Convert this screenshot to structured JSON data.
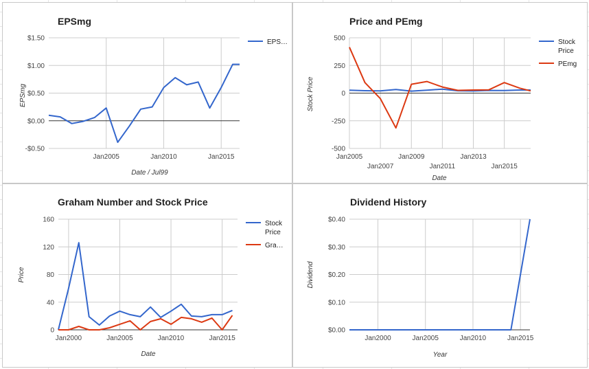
{
  "chart_data": [
    {
      "id": "eps",
      "type": "line",
      "title": "EPSmg",
      "xlabel": "Date / Jul99",
      "ylabel": "EPSmg",
      "x_ticks": [
        "Jan2005",
        "Jan2010",
        "Jan2015"
      ],
      "x_tick_years": [
        2005,
        2010,
        2015
      ],
      "xlim": [
        2000.0,
        2016.6
      ],
      "ylim": [
        -0.5,
        1.5
      ],
      "y_ticks": [
        -0.5,
        0,
        0.5,
        1.0,
        1.5
      ],
      "y_tick_labels": [
        "-$0.50",
        "$0.00",
        "$0.50",
        "$1.00",
        "$1.50"
      ],
      "legend_position": "right",
      "series": [
        {
          "name": "EPS…",
          "color": "#3366cc",
          "x": [
            2000.0,
            2001.0,
            2002.0,
            2003.0,
            2004.0,
            2005.0,
            2006.0,
            2007.0,
            2008.0,
            2009.0,
            2010.0,
            2011.0,
            2012.0,
            2013.0,
            2014.0,
            2015.0,
            2016.0,
            2016.6
          ],
          "y": [
            0.1,
            0.07,
            -0.05,
            -0.01,
            0.06,
            0.23,
            -0.39,
            -0.1,
            0.21,
            0.25,
            0.6,
            0.78,
            0.65,
            0.7,
            0.23,
            0.6,
            1.02,
            1.02
          ]
        }
      ]
    },
    {
      "id": "price-pe",
      "type": "line",
      "title": "Price and PEmg",
      "xlabel": "Date",
      "ylabel": "Stock Price",
      "x_ticks_upper": [
        "Jan2005",
        "Jan2009",
        "Jan2013"
      ],
      "x_ticks_upper_years": [
        2005,
        2009,
        2013
      ],
      "x_ticks_lower": [
        "Jan2007",
        "Jan2011",
        "Jan2015"
      ],
      "x_ticks_lower_years": [
        2007,
        2011,
        2015
      ],
      "xlim": [
        2005.0,
        2016.7
      ],
      "ylim": [
        -500,
        500
      ],
      "y_ticks": [
        -500,
        -250,
        0,
        250,
        500
      ],
      "y_tick_labels": [
        "-500",
        "-250",
        "0",
        "250",
        "500"
      ],
      "legend_position": "right",
      "series": [
        {
          "name": "Stock Price",
          "name_lines": [
            "Stock",
            "Price"
          ],
          "color": "#3366cc",
          "x": [
            2005.0,
            2006.0,
            2007.0,
            2008.0,
            2009.0,
            2010.0,
            2011.0,
            2012.0,
            2013.0,
            2014.0,
            2015.0,
            2016.0,
            2016.7
          ],
          "y": [
            26,
            22,
            20,
            33,
            18,
            27,
            36,
            21,
            19,
            24,
            23,
            28,
            28
          ]
        },
        {
          "name": "PEmg",
          "name_lines": [
            "PEmg"
          ],
          "color": "#dc3912",
          "x": [
            2005.0,
            2006.0,
            2007.0,
            2008.0,
            2009.0,
            2010.0,
            2011.0,
            2012.0,
            2013.0,
            2014.0,
            2015.0,
            2016.0,
            2016.7
          ],
          "y": [
            415,
            95,
            -50,
            -315,
            80,
            105,
            55,
            25,
            28,
            30,
            95,
            45,
            20
          ]
        }
      ]
    },
    {
      "id": "graham",
      "type": "line",
      "title": "Graham Number and Stock Price",
      "xlabel": "Date",
      "ylabel": "Price",
      "x_ticks": [
        "Jan2000",
        "Jan2005",
        "Jan2010",
        "Jan2015"
      ],
      "x_tick_years": [
        2000,
        2005,
        2010,
        2015
      ],
      "xlim": [
        1999.0,
        2016.5
      ],
      "ylim": [
        0,
        160
      ],
      "y_ticks": [
        0,
        40,
        80,
        120,
        160
      ],
      "y_tick_labels": [
        "0",
        "40",
        "80",
        "120",
        "160"
      ],
      "legend_position": "right",
      "series": [
        {
          "name": "Stock Price",
          "name_lines": [
            "Stock",
            "Price"
          ],
          "color": "#3366cc",
          "x": [
            1999.0,
            2000.0,
            2001.0,
            2002.0,
            2003.0,
            2004.0,
            2005.0,
            2006.0,
            2007.0,
            2008.0,
            2009.0,
            2010.0,
            2011.0,
            2012.0,
            2013.0,
            2014.0,
            2015.0,
            2016.0
          ],
          "y": [
            0,
            60,
            126,
            19,
            7,
            20,
            27,
            22,
            19,
            33,
            18,
            27,
            37,
            20,
            19,
            22,
            22,
            28
          ]
        },
        {
          "name": "Gra…",
          "name_lines": [
            "Gra…"
          ],
          "color": "#dc3912",
          "x": [
            1999.0,
            2000.0,
            2001.0,
            2002.0,
            2003.0,
            2004.0,
            2005.0,
            2006.0,
            2007.0,
            2008.0,
            2009.0,
            2010.0,
            2011.0,
            2012.0,
            2013.0,
            2014.0,
            2015.0,
            2016.0
          ],
          "y": [
            0,
            0,
            5,
            0,
            0,
            3,
            8,
            13,
            0,
            12,
            16,
            8,
            18,
            16,
            11,
            17,
            0,
            21
          ]
        }
      ]
    },
    {
      "id": "dividend",
      "type": "line",
      "title": "Dividend History",
      "xlabel": "Year",
      "ylabel": "Dividend",
      "x_ticks": [
        "Jan2000",
        "Jan2005",
        "Jan2010",
        "Jan2015"
      ],
      "x_tick_years": [
        2000,
        2005,
        2010,
        2015
      ],
      "xlim": [
        1997.0,
        2016.0
      ],
      "ylim": [
        0,
        0.4
      ],
      "y_ticks": [
        0,
        0.1,
        0.2,
        0.3,
        0.4
      ],
      "y_tick_labels": [
        "$0.00",
        "$0.10",
        "$0.20",
        "$0.30",
        "$0.40"
      ],
      "series": [
        {
          "name": "Dividend",
          "color": "#3366cc",
          "x": [
            1997.0,
            2014.0,
            2016.0
          ],
          "y": [
            0.0,
            0.0,
            0.4
          ]
        }
      ]
    }
  ]
}
